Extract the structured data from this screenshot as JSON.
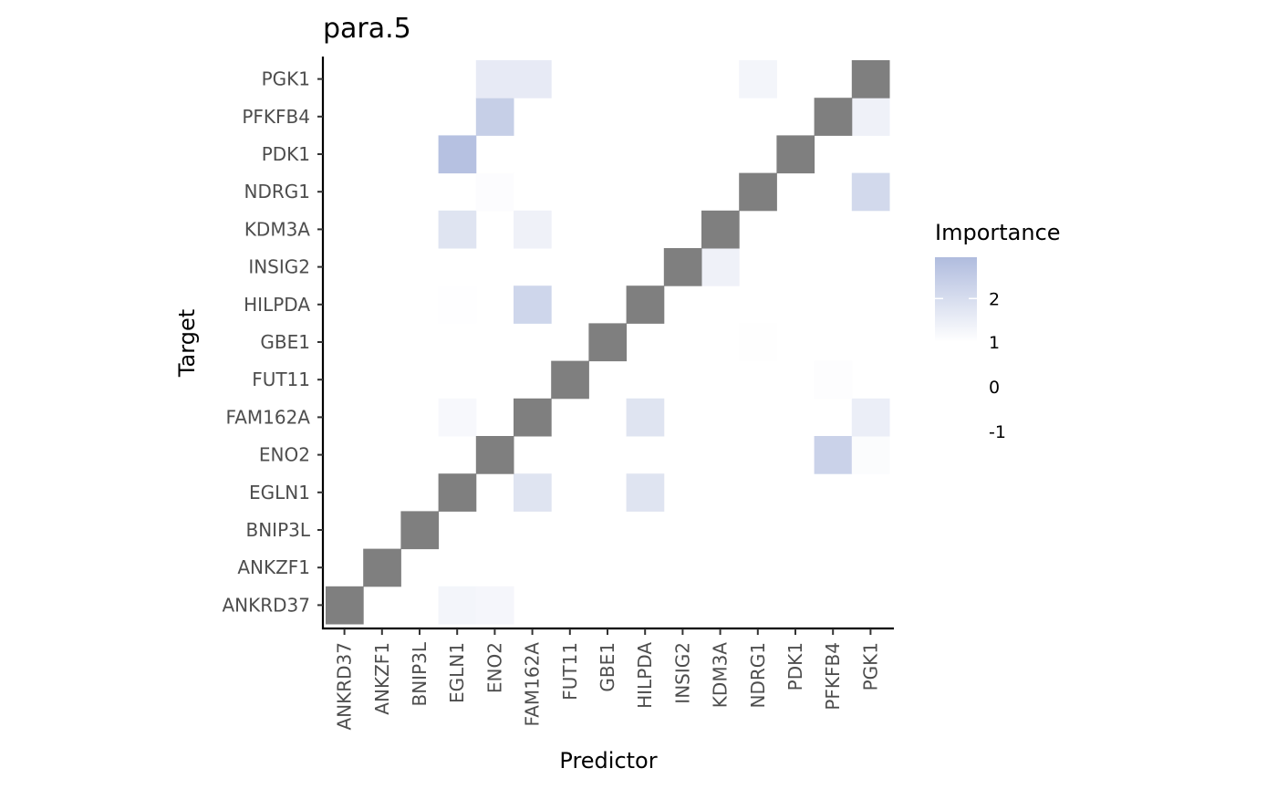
{
  "chart_data": {
    "type": "heatmap",
    "title": "para.5",
    "xlabel": "Predictor",
    "ylabel": "Target",
    "predictors": [
      "ANKRD37",
      "ANKZF1",
      "BNIP3L",
      "EGLN1",
      "ENO2",
      "FAM162A",
      "FUT11",
      "GBE1",
      "HILPDA",
      "INSIG2",
      "KDM3A",
      "NDRG1",
      "PDK1",
      "PFKFB4",
      "PGK1"
    ],
    "targets": [
      "ANKRD37",
      "ANKZF1",
      "BNIP3L",
      "EGLN1",
      "ENO2",
      "FAM162A",
      "FUT11",
      "GBE1",
      "HILPDA",
      "INSIG2",
      "KDM3A",
      "NDRG1",
      "PDK1",
      "PFKFB4",
      "PGK1"
    ],
    "diagonal_color": "#7f7f7f",
    "cells": [
      {
        "target": "ANKRD37",
        "predictor": "EGLN1",
        "value": 1.3
      },
      {
        "target": "ANKRD37",
        "predictor": "ENO2",
        "value": 1.25
      },
      {
        "target": "EGLN1",
        "predictor": "FAM162A",
        "value": 1.8
      },
      {
        "target": "EGLN1",
        "predictor": "HILPDA",
        "value": 1.8
      },
      {
        "target": "ENO2",
        "predictor": "PFKFB4",
        "value": 2.3
      },
      {
        "target": "ENO2",
        "predictor": "PGK1",
        "value": 1.1
      },
      {
        "target": "FAM162A",
        "predictor": "EGLN1",
        "value": 1.2
      },
      {
        "target": "FAM162A",
        "predictor": "HILPDA",
        "value": 1.8
      },
      {
        "target": "FAM162A",
        "predictor": "PGK1",
        "value": 1.5
      },
      {
        "target": "FUT11",
        "predictor": "PFKFB4",
        "value": 1.05
      },
      {
        "target": "GBE1",
        "predictor": "NDRG1",
        "value": 1.03
      },
      {
        "target": "HILPDA",
        "predictor": "EGLN1",
        "value": 1.02
      },
      {
        "target": "HILPDA",
        "predictor": "FAM162A",
        "value": 2.2
      },
      {
        "target": "INSIG2",
        "predictor": "KDM3A",
        "value": 1.4
      },
      {
        "target": "KDM3A",
        "predictor": "EGLN1",
        "value": 1.8
      },
      {
        "target": "KDM3A",
        "predictor": "FAM162A",
        "value": 1.4
      },
      {
        "target": "NDRG1",
        "predictor": "ENO2",
        "value": 1.08
      },
      {
        "target": "NDRG1",
        "predictor": "PGK1",
        "value": 2.1
      },
      {
        "target": "PDK1",
        "predictor": "EGLN1",
        "value": 2.8
      },
      {
        "target": "PFKFB4",
        "predictor": "ENO2",
        "value": 2.4
      },
      {
        "target": "PFKFB4",
        "predictor": "PGK1",
        "value": 1.4
      },
      {
        "target": "PGK1",
        "predictor": "ENO2",
        "value": 1.6
      },
      {
        "target": "PGK1",
        "predictor": "FAM162A",
        "value": 1.6
      },
      {
        "target": "PGK1",
        "predictor": "NDRG1",
        "value": 1.3
      }
    ],
    "legend": {
      "title": "Importance",
      "ticks": [
        2,
        1,
        0,
        -1
      ],
      "tick_labels": [
        "2",
        "1",
        "0",
        "-1"
      ],
      "range": [
        1,
        2.95
      ],
      "low_color": "#ffffff",
      "high_color": "#b0bcde"
    },
    "grid": false
  }
}
